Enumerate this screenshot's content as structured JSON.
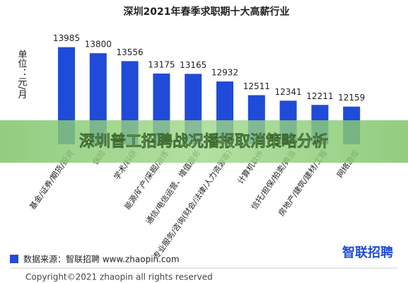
{
  "chart_data": {
    "type": "bar",
    "title": "深圳2021年春季求职期十大高薪行业",
    "y_label": "单位：元/月",
    "categories": [
      "基金/证券/期货/投资",
      "保险",
      "学术/科研",
      "能源/矿产/采掘/冶炼",
      "通信/电信运营、增值服务",
      "专业服务/咨询(财会/法律/人力资源等)",
      "计算机软件",
      "信托/担保/拍卖/典当",
      "房地产/建筑/建材/工程",
      "网络游戏"
    ],
    "values": [
      13985,
      13800,
      13556,
      13175,
      13165,
      12932,
      12511,
      12341,
      12211,
      12159
    ],
    "color": "#1f4bd8",
    "ylim": [
      11000,
      14500
    ]
  },
  "banner": "深圳普工招聘战况播报取消策略分析",
  "footer": {
    "source": "数据来源：智联招聘 www.zhaopin.com",
    "logo": "智联招聘",
    "copyright": "Copyright©2021 zhaopin all rights reserved"
  }
}
